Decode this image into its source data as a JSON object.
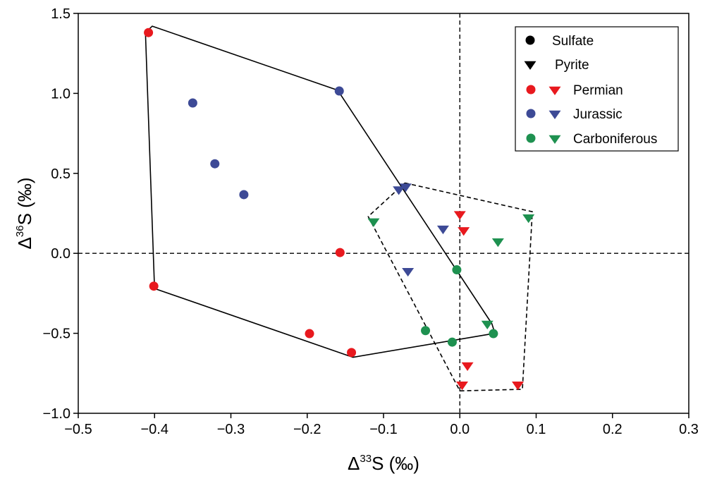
{
  "chart_data": {
    "type": "scatter",
    "title": "",
    "xlabel": {
      "prefix": "Δ",
      "sup": "33",
      "main": "S (‰)"
    },
    "ylabel": {
      "prefix": "Δ",
      "sup": "36",
      "main": "S (‰)"
    },
    "xlim": [
      -0.5,
      0.3
    ],
    "ylim": [
      -1.0,
      1.5
    ],
    "xticks": [
      -0.5,
      -0.4,
      -0.3,
      -0.2,
      -0.1,
      0.0,
      0.1,
      0.2,
      0.3
    ],
    "xtick_labels": [
      "−0.5",
      "−0.4",
      "−0.3",
      "−0.2",
      "−0.1",
      "0.0",
      "0.1",
      "0.2",
      "0.3"
    ],
    "yticks": [
      -1.0,
      -0.5,
      0.0,
      0.5,
      1.0,
      1.5
    ],
    "ytick_labels": [
      "−1.0",
      "−0.5",
      "0.0",
      "0.5",
      "1.0",
      "1.5"
    ],
    "grid": false,
    "legend_position": "top-right",
    "reference_lines": [
      {
        "axis": "x",
        "value": 0,
        "style": "dashed"
      },
      {
        "axis": "y",
        "value": 0,
        "style": "dashed"
      }
    ],
    "legend": {
      "markers": [
        {
          "label": "Sulfate",
          "shape": "circle"
        },
        {
          "label": "Pyrite",
          "shape": "triangle-down"
        }
      ],
      "periods": [
        {
          "label": "Permian",
          "color": "#e8191e"
        },
        {
          "label": "Jurassic",
          "color": "#3d4a96"
        },
        {
          "label": "Carboniferous",
          "color": "#1e9150"
        }
      ]
    },
    "series": [
      {
        "period": "Permian",
        "type": "Sulfate",
        "shape": "circle",
        "color": "#e8191e",
        "points": [
          [
            -0.408,
            1.38
          ],
          [
            -0.401,
            -0.205
          ],
          [
            -0.157,
            0.005
          ],
          [
            -0.197,
            -0.502
          ],
          [
            -0.142,
            -0.62
          ]
        ]
      },
      {
        "period": "Jurassic",
        "type": "Sulfate",
        "shape": "circle",
        "color": "#3d4a96",
        "points": [
          [
            -0.158,
            1.015
          ],
          [
            -0.35,
            0.94
          ],
          [
            -0.321,
            0.56
          ],
          [
            -0.283,
            0.367
          ]
        ]
      },
      {
        "period": "Carboniferous",
        "type": "Sulfate",
        "shape": "circle",
        "color": "#1e9150",
        "points": [
          [
            -0.004,
            -0.103
          ],
          [
            -0.045,
            -0.483
          ],
          [
            -0.01,
            -0.555
          ],
          [
            0.044,
            -0.502
          ]
        ]
      },
      {
        "period": "Permian",
        "type": "Pyrite",
        "shape": "triangle-down",
        "color": "#e8191e",
        "points": [
          [
            0.0,
            0.245
          ],
          [
            0.005,
            0.145
          ],
          [
            0.01,
            -0.7
          ],
          [
            0.003,
            -0.82
          ],
          [
            0.076,
            -0.82
          ]
        ]
      },
      {
        "period": "Jurassic",
        "type": "Pyrite",
        "shape": "triangle-down",
        "color": "#3d4a96",
        "points": [
          [
            -0.08,
            0.4
          ],
          [
            -0.071,
            0.418
          ],
          [
            -0.022,
            0.155
          ],
          [
            -0.068,
            -0.11
          ]
        ]
      },
      {
        "period": "Carboniferous",
        "type": "Pyrite",
        "shape": "triangle-down",
        "color": "#1e9150",
        "points": [
          [
            -0.113,
            0.2
          ],
          [
            0.036,
            -0.44
          ],
          [
            0.05,
            0.075
          ],
          [
            0.09,
            0.225
          ]
        ]
      }
    ],
    "envelopes": [
      {
        "style": "solid",
        "points": [
          [
            -0.403,
            1.42
          ],
          [
            -0.16,
            1.02
          ],
          [
            0.042,
            -0.44
          ],
          [
            0.046,
            -0.5
          ],
          [
            -0.14,
            -0.65
          ],
          [
            -0.4,
            -0.22
          ],
          [
            -0.412,
            1.38
          ]
        ]
      },
      {
        "style": "dashed",
        "points": [
          [
            -0.072,
            0.44
          ],
          [
            0.095,
            0.26
          ],
          [
            0.082,
            -0.85
          ],
          [
            0.0,
            -0.86
          ],
          [
            -0.12,
            0.23
          ]
        ]
      }
    ]
  }
}
